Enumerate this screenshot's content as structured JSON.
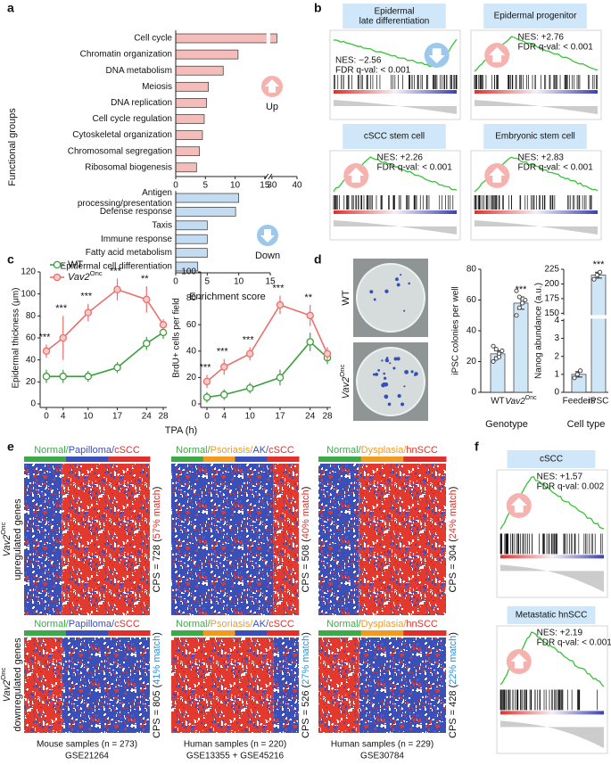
{
  "panel_labels": [
    "a",
    "b",
    "c",
    "d",
    "e",
    "f"
  ],
  "chart_data": [
    {
      "type": "hbar",
      "ylabel": "Functional groups",
      "label": "Up",
      "color": "#f6bcb9",
      "categories": [
        "Cell cycle",
        "Chromatin organization",
        "DNA metabolism",
        "Meiosis",
        "DNA replication",
        "Cell cycle regulation",
        "Cytoskeletal organization",
        "Chromosomal segregation",
        "Ribosomal biogenesis"
      ],
      "values": [
        32,
        10.5,
        8,
        5.5,
        5.2,
        4.8,
        4.5,
        4,
        3.5
      ],
      "xlim": [
        0,
        40
      ],
      "xbreak": [
        15,
        30
      ],
      "xticks": [
        0,
        5,
        10,
        15,
        30,
        40
      ]
    },
    {
      "type": "hbar",
      "label": "Down",
      "xlabel": "Enrichment score",
      "color": "#c4dcf1",
      "categories": [
        "Antigen processing/presentation",
        "Defense response",
        "Taxis",
        "Immune response",
        "Fatty acid metabolism",
        "Epidermal cell differentiation"
      ],
      "values": [
        10,
        9.5,
        5,
        5,
        5,
        3.5
      ],
      "xlim": [
        0,
        15
      ],
      "xticks": [
        0,
        5,
        10,
        15
      ]
    },
    {
      "type": "line",
      "ylabel": "Epidermal thickness (μm)",
      "xlabel": "TPA (h)",
      "legend": "upper left",
      "x": [
        0,
        4,
        10,
        17,
        24,
        28
      ],
      "xlim": [
        0,
        28
      ],
      "xticks": [
        0,
        4,
        10,
        17,
        24,
        28
      ],
      "ylim": [
        0,
        120
      ],
      "yticks": [
        0,
        20,
        40,
        60,
        80,
        100,
        120
      ],
      "series": [
        {
          "name": "WT",
          "color": "#3f9e3f",
          "marker_fill": "#ffffff",
          "values": [
            25,
            25,
            25,
            33,
            55,
            65
          ],
          "errors": [
            6,
            6,
            5,
            5,
            6,
            6
          ]
        },
        {
          "name": "Vav2Onc",
          "color": "#e8716d",
          "marker_fill": "#f8c9c6",
          "values": [
            48,
            60,
            83,
            104,
            95,
            72
          ],
          "errors": [
            6,
            20,
            8,
            10,
            12,
            5
          ]
        }
      ],
      "annotations": [
        {
          "x": 0,
          "text": "***"
        },
        {
          "x": 4,
          "text": "***"
        },
        {
          "x": 10,
          "text": "***"
        },
        {
          "x": 17,
          "text": "***"
        },
        {
          "x": 24,
          "text": "**"
        }
      ]
    },
    {
      "type": "line",
      "ylabel": "BrdU+ cells per field",
      "x": [
        0,
        4,
        10,
        17,
        24,
        28
      ],
      "xlim": [
        0,
        28
      ],
      "xticks": [
        0,
        4,
        10,
        17,
        24,
        28
      ],
      "ylim": [
        0,
        100
      ],
      "yticks": [
        0,
        20,
        40,
        60,
        80,
        100
      ],
      "series": [
        {
          "color": "#3f9e3f",
          "marker_fill": "#ffffff",
          "values": [
            5,
            7,
            12,
            20,
            47,
            35
          ],
          "errors": [
            4,
            4,
            4,
            6,
            7,
            5
          ]
        },
        {
          "color": "#e8716d",
          "marker_fill": "#f8c9c6",
          "values": [
            17,
            28,
            38,
            75,
            67,
            38
          ],
          "errors": [
            5,
            6,
            5,
            7,
            8,
            5
          ]
        }
      ],
      "annotations": [
        {
          "x": 0,
          "text": "***"
        },
        {
          "x": 4,
          "text": "***"
        },
        {
          "x": 10,
          "text": "***"
        },
        {
          "x": 17,
          "text": "***"
        },
        {
          "x": 24,
          "text": "**"
        }
      ]
    },
    {
      "type": "dotbar",
      "ylabel": "iPSC colonies per well",
      "xlabel": "Genotype",
      "color": "#cfe6f7",
      "categories": [
        "WT",
        "Vav2Onc"
      ],
      "values": [
        25,
        58
      ],
      "errors": [
        2,
        4
      ],
      "points": [
        [
          20,
          22,
          25,
          27,
          30,
          28,
          23
        ],
        [
          50,
          55,
          58,
          60,
          66,
          62
        ]
      ],
      "ylim": [
        0,
        80
      ],
      "yticks": [
        0,
        20,
        40,
        60,
        80
      ],
      "annotations": [
        {
          "category": "Vav2Onc",
          "text": "***"
        }
      ]
    },
    {
      "type": "dotbar",
      "ylabel": "Nanog abundance (a.u.)",
      "xlabel": "Cell type",
      "color": "#cfe6f7",
      "categories": [
        "Feeders",
        "iPSC"
      ],
      "values": [
        1,
        215
      ],
      "errors": [
        0.15,
        5
      ],
      "points": [
        [
          0.8,
          1,
          1.2
        ],
        [
          208,
          215,
          220
        ]
      ],
      "ylim": [
        0,
        225
      ],
      "ybreak": [
        4,
        150
      ],
      "yticks": [
        0,
        1,
        2,
        3,
        4,
        150,
        175,
        200,
        225
      ],
      "annotations": [
        {
          "category": "iPSC",
          "text": "***"
        }
      ]
    }
  ],
  "gsea": [
    {
      "title": "Epidermal late differentiation",
      "nes": "NES: −2.56",
      "fdr": "FDR q-val: < 0.001",
      "arrow": "down"
    },
    {
      "title": "Epidermal progenitor",
      "nes": "NES: +2.76",
      "fdr": "FDR q-val: < 0.001",
      "arrow": "up"
    },
    {
      "title": "cSCC stem cell",
      "nes": "NES: +2.26",
      "fdr": "FDR q-val: < 0.001",
      "arrow": "up"
    },
    {
      "title": "Embryonic stem cell",
      "nes": "NES: +2.83",
      "fdr": "FDR q-val: < 0.001",
      "arrow": "up"
    }
  ],
  "gsea_f": [
    {
      "title": "cSCC",
      "nes": "NES: +1.57",
      "fdr": "FDR q-val: 0.002",
      "arrow": "up"
    },
    {
      "title": "Metastatic hnSCC",
      "nes": "NES: +2.19",
      "fdr": "FDR q-val: < 0.001",
      "arrow": "up"
    }
  ],
  "plates": {
    "labels": [
      "WT",
      "Vav2Onc"
    ]
  },
  "heatmaps": {
    "rows": [
      "Vav2Onc upregulated genes",
      "Vav2Onc downregulated genes"
    ],
    "separator": "/",
    "match_colors": [
      "#e0302b",
      "#2f8fd6"
    ],
    "columns": [
      {
        "groups": [
          "Normal",
          "Papilloma",
          "cSCC"
        ],
        "group_colors": [
          "#3daa4a",
          "#3b4fb8",
          "#e0302b"
        ],
        "cps": [
          "CPS = 728 (57% match)",
          "CPS = 805 (41% match)"
        ],
        "samples": "Mouse samples (n = 273)",
        "dataset": "GSE21264"
      },
      {
        "groups": [
          "Normal",
          "Psoriasis",
          "AK",
          "cSCC"
        ],
        "group_colors": [
          "#3daa4a",
          "#f29a1f",
          "#3b4fb8",
          "#e0302b"
        ],
        "cps": [
          "CPS = 508 (40% match)",
          "CPS = 526 (27% match)"
        ],
        "samples": "Human samples (n = 220)",
        "dataset": "GSE13355 + GSE45216"
      },
      {
        "groups": [
          "Normal",
          "Dysplasia",
          "hnSCC"
        ],
        "group_colors": [
          "#3daa4a",
          "#f29a1f",
          "#e0302b"
        ],
        "cps": [
          "CPS = 304 (24% match)",
          "CPS = 428 (22% match)"
        ],
        "samples": "Human samples (n = 229)",
        "dataset": "GSE30784"
      }
    ]
  }
}
